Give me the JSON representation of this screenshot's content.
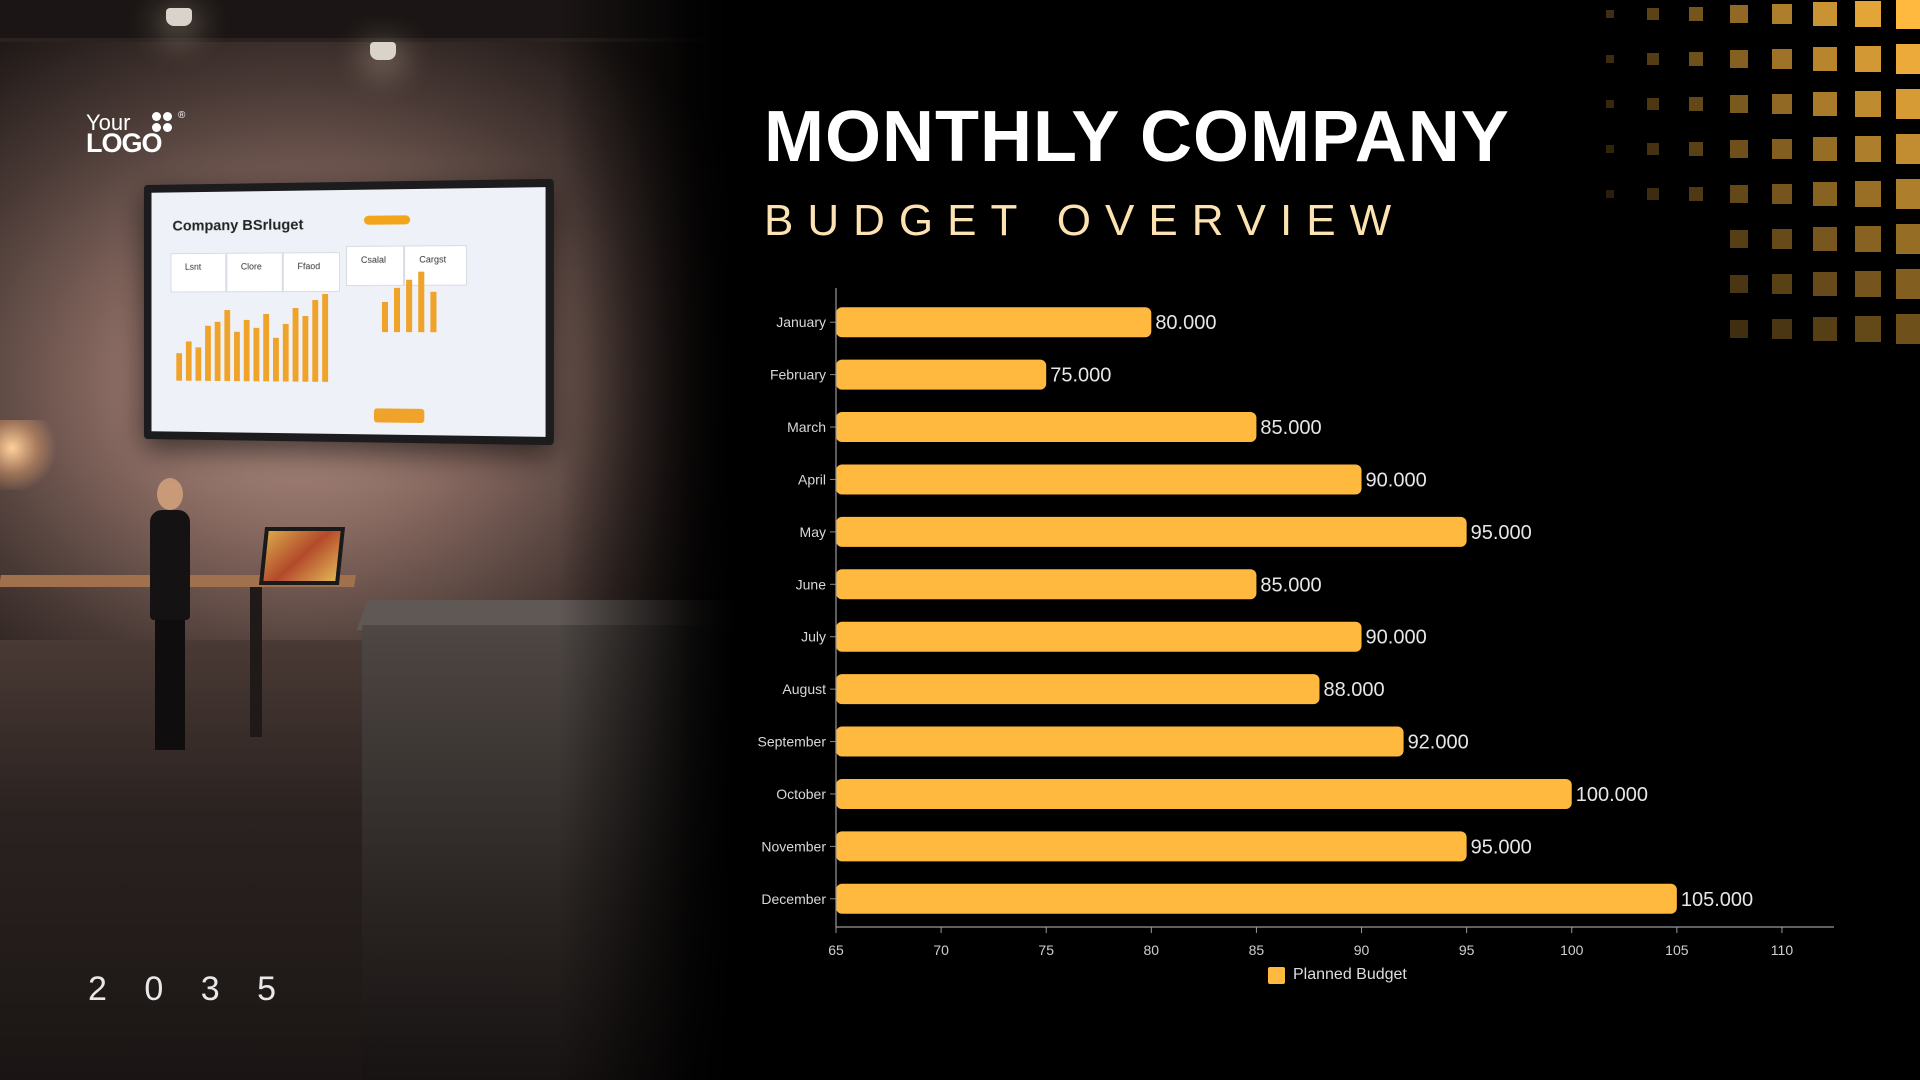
{
  "header": {
    "title": "MONTHLY COMPANY",
    "subtitle": "BUDGET OVERVIEW"
  },
  "brand": {
    "logo_line1": "Your",
    "logo_line2": "LOGO",
    "registered": "®"
  },
  "footer": {
    "year": "2 0 3 5"
  },
  "photo": {
    "screen_title": "Company BSrluget",
    "cards": [
      "Lsnt",
      "Clore",
      "Ffaod",
      "Csalal",
      "Cargst"
    ]
  },
  "colors": {
    "bar": "#ffb93f",
    "accent_text": "#fde3b2",
    "background": "#000000"
  },
  "chart_data": {
    "type": "bar",
    "orientation": "horizontal",
    "categories": [
      "January",
      "February",
      "March",
      "April",
      "May",
      "June",
      "July",
      "August",
      "September",
      "October",
      "November",
      "December"
    ],
    "series": [
      {
        "name": "Planned Budget",
        "values": [
          80000,
          75000,
          85000,
          90000,
          95000,
          85000,
          90000,
          88000,
          92000,
          100000,
          95000,
          105000
        ],
        "labels": [
          "80.000",
          "75.000",
          "85.000",
          "90.000",
          "95.000",
          "85.000",
          "90.000",
          "88.000",
          "92.000",
          "100.000",
          "95.000",
          "105.000"
        ]
      }
    ],
    "xaxis_ticks": [
      65,
      70,
      75,
      80,
      85,
      90,
      95,
      100,
      105,
      110
    ],
    "xlim": [
      65000,
      112000
    ],
    "title": "",
    "xlabel": "",
    "ylabel": "",
    "grid": false,
    "legend_position": "bottom-center"
  }
}
